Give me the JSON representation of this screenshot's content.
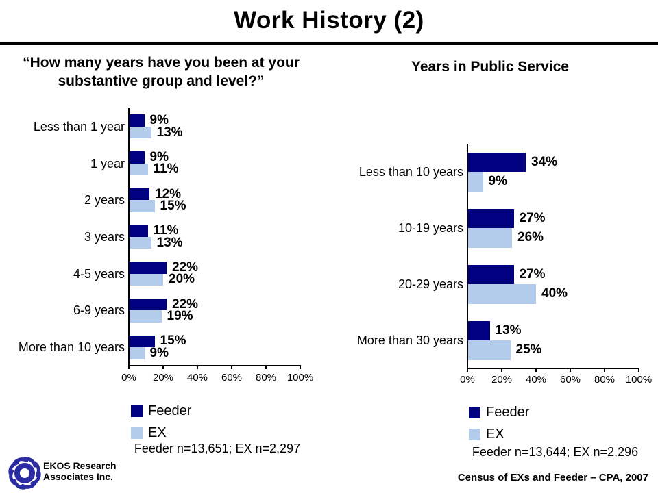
{
  "page": {
    "title": "Work History (2)"
  },
  "chart_data": [
    {
      "type": "bar",
      "orientation": "horizontal",
      "title": "“How many years have you been at your substantive group and level?”",
      "categories": [
        "Less than 1 year",
        "1 year",
        "2 years",
        "3 years",
        "4-5 years",
        "6-9 years",
        "More than 10 years"
      ],
      "series": [
        {
          "name": "Feeder",
          "color": "#000080",
          "values": [
            9,
            9,
            12,
            11,
            22,
            22,
            15
          ]
        },
        {
          "name": "EX",
          "color": "#B3CCEB",
          "values": [
            13,
            11,
            15,
            13,
            20,
            19,
            9
          ]
        }
      ],
      "value_suffix": "%",
      "xlim": [
        0,
        100
      ],
      "x_ticks": [
        "0%",
        "20%",
        "40%",
        "60%",
        "80%",
        "100%"
      ],
      "grid": false,
      "legend_position": "bottom",
      "note": "Feeder n=13,651; EX n=2,297"
    },
    {
      "type": "bar",
      "orientation": "horizontal",
      "title": "Years in Public Service",
      "categories": [
        "Less than 10 years",
        "10-19 years",
        "20-29 years",
        "More than 30 years"
      ],
      "series": [
        {
          "name": "Feeder",
          "color": "#000080",
          "values": [
            34,
            27,
            27,
            13
          ]
        },
        {
          "name": "EX",
          "color": "#B3CCEB",
          "values": [
            9,
            26,
            40,
            25
          ]
        }
      ],
      "value_suffix": "%",
      "xlim": [
        0,
        100
      ],
      "x_ticks": [
        "0%",
        "20%",
        "40%",
        "60%",
        "80%",
        "100%"
      ],
      "grid": false,
      "legend_position": "bottom",
      "note": "Feeder n=13,644; EX n=2,296"
    }
  ],
  "footer": {
    "org_line1": "EKOS Research",
    "org_line2": "Associates Inc.",
    "source": "Census of EXs and Feeder – CPA, 2007",
    "logo_color": "#2B2BA3"
  }
}
